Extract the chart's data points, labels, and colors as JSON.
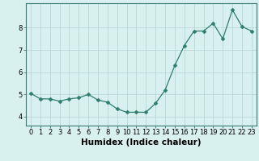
{
  "x": [
    0,
    1,
    2,
    3,
    4,
    5,
    6,
    7,
    8,
    9,
    10,
    11,
    12,
    13,
    14,
    15,
    16,
    17,
    18,
    19,
    20,
    21,
    22,
    23
  ],
  "y": [
    5.05,
    4.8,
    4.8,
    4.7,
    4.8,
    4.85,
    5.0,
    4.75,
    4.65,
    4.35,
    4.2,
    4.2,
    4.2,
    4.6,
    5.2,
    6.3,
    7.2,
    7.85,
    7.85,
    8.2,
    7.5,
    8.8,
    8.05,
    7.85
  ],
  "xlabel": "Humidex (Indice chaleur)",
  "ylim": [
    3.6,
    9.1
  ],
  "xlim": [
    -0.5,
    23.5
  ],
  "yticks": [
    4,
    5,
    6,
    7,
    8
  ],
  "xticks": [
    0,
    1,
    2,
    3,
    4,
    5,
    6,
    7,
    8,
    9,
    10,
    11,
    12,
    13,
    14,
    15,
    16,
    17,
    18,
    19,
    20,
    21,
    22,
    23
  ],
  "line_color": "#2e7d6e",
  "marker_color": "#2e7d6e",
  "bg_color": "#d8f0ee",
  "grid_color": "#b8d8d4",
  "xlabel_fontsize": 7.5,
  "tick_fontsize": 6.0,
  "spine_color": "#3a7a70"
}
